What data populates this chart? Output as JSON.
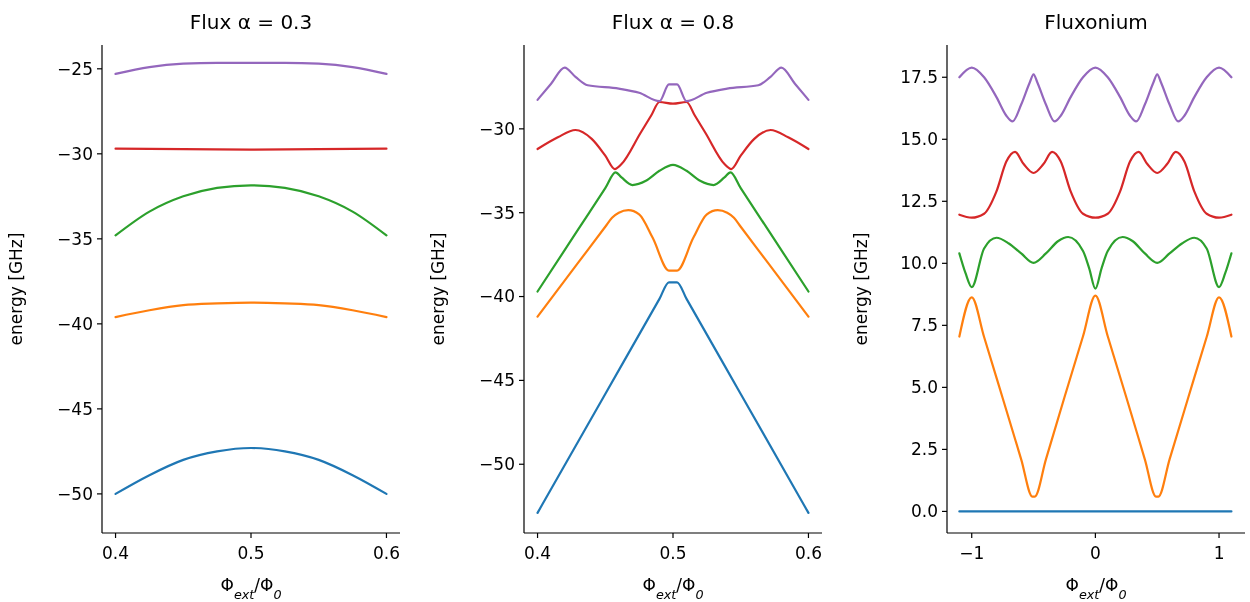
{
  "chart_data": [
    {
      "type": "line",
      "title": "Flux α = 0.3",
      "xlabel": "Φ$_{ext}$/Φ$_{0}$",
      "ylabel": "energy [GHz]",
      "xlim": [
        0.39,
        0.61
      ],
      "ylim": [
        -52.3,
        -23.6
      ],
      "xticks": [
        0.4,
        0.5,
        0.6
      ],
      "yticks": [
        {
          "value": -50,
          "label": "−50"
        },
        {
          "value": -45,
          "label": "−45"
        },
        {
          "value": -40,
          "label": "−40"
        },
        {
          "value": -35,
          "label": "−35"
        },
        {
          "value": -30,
          "label": "−30"
        },
        {
          "value": -25,
          "label": "−25"
        }
      ],
      "series": [
        {
          "color": "#1f77b4",
          "x": [
            0.4,
            0.425,
            0.45,
            0.475,
            0.5,
            0.525,
            0.55,
            0.575,
            0.6
          ],
          "values": [
            -50,
            -48.9,
            -48,
            -47.5,
            -47.3,
            -47.5,
            -48,
            -48.9,
            -50
          ]
        },
        {
          "color": "#ff7f0e",
          "x": [
            0.4,
            0.425,
            0.45,
            0.475,
            0.5,
            0.525,
            0.55,
            0.575,
            0.6
          ],
          "values": [
            -39.6,
            -39.2,
            -38.9,
            -38.8,
            -38.75,
            -38.8,
            -38.9,
            -39.2,
            -39.6
          ]
        },
        {
          "color": "#2ca02c",
          "x": [
            0.4,
            0.425,
            0.45,
            0.475,
            0.5,
            0.525,
            0.55,
            0.575,
            0.6
          ],
          "values": [
            -34.8,
            -33.4,
            -32.5,
            -32,
            -31.85,
            -32,
            -32.5,
            -33.4,
            -34.8
          ]
        },
        {
          "color": "#d62728",
          "x": [
            0.4,
            0.45,
            0.5,
            0.55,
            0.6
          ],
          "values": [
            -29.7,
            -29.72,
            -29.75,
            -29.72,
            -29.7
          ]
        },
        {
          "color": "#9467bd",
          "x": [
            0.4,
            0.425,
            0.45,
            0.475,
            0.5,
            0.525,
            0.55,
            0.575,
            0.6
          ],
          "values": [
            -25.3,
            -24.9,
            -24.7,
            -24.65,
            -24.65,
            -24.65,
            -24.7,
            -24.9,
            -25.3
          ]
        }
      ]
    },
    {
      "type": "line",
      "title": "Flux α = 0.8",
      "xlabel": "Φ$_{ext}$/Φ$_{0}$",
      "ylabel": "energy [GHz]",
      "xlim": [
        0.39,
        0.61
      ],
      "ylim": [
        -54.1,
        -25
      ],
      "xticks": [
        0.4,
        0.5,
        0.6
      ],
      "yticks": [
        {
          "value": -50,
          "label": "−50"
        },
        {
          "value": -45,
          "label": "−45"
        },
        {
          "value": -40,
          "label": "−40"
        },
        {
          "value": -35,
          "label": "−35"
        },
        {
          "value": -30,
          "label": "−30"
        }
      ],
      "series": [
        {
          "color": "#1f77b4",
          "x": [
            0.4,
            0.45,
            0.49,
            0.497,
            0.503,
            0.51,
            0.55,
            0.6
          ],
          "values": [
            -52.9,
            -45.81,
            -40.14,
            -39.15,
            -39.15,
            -40.14,
            -45.81,
            -52.9
          ]
        },
        {
          "color": "#ff7f0e",
          "x": [
            0.4,
            0.43,
            0.45,
            0.455,
            0.46,
            0.467,
            0.475,
            0.485,
            0.497,
            0.503,
            0.515,
            0.525,
            0.533,
            0.54,
            0.545,
            0.55,
            0.57,
            0.6
          ],
          "values": [
            -41.2,
            -37.98,
            -35.84,
            -35.3,
            -35,
            -34.85,
            -35.1,
            -36.5,
            -38.45,
            -38.45,
            -36.5,
            -35.1,
            -34.85,
            -35,
            -35.3,
            -35.84,
            -37.98,
            -41.2
          ]
        },
        {
          "color": "#2ca02c",
          "x": [
            0.4,
            0.43,
            0.45,
            0.4576,
            0.462,
            0.47,
            0.48,
            0.49,
            0.5,
            0.51,
            0.52,
            0.53,
            0.538,
            0.5424,
            0.55,
            0.57,
            0.6
          ],
          "values": [
            -39.7,
            -36,
            -33.54,
            -32.6,
            -32.9,
            -33.35,
            -33.1,
            -32.5,
            -32.15,
            -32.5,
            -33.1,
            -33.35,
            -32.9,
            -32.6,
            -33.54,
            -36,
            -39.7
          ]
        },
        {
          "color": "#d62728",
          "x": [
            0.4,
            0.415,
            0.428,
            0.44,
            0.45,
            0.457,
            0.462,
            0.476,
            0.484,
            0.49,
            0.5,
            0.51,
            0.516,
            0.524,
            0.538,
            0.543,
            0.55,
            0.56,
            0.572,
            0.585,
            0.6
          ],
          "values": [
            -31.2,
            -30.5,
            -30.07,
            -30.6,
            -31.6,
            -32.4,
            -32.1,
            -30.25,
            -29.19,
            -28.4,
            -28.5,
            -28.4,
            -29.19,
            -30.25,
            -32.1,
            -32.4,
            -31.6,
            -30.6,
            -30.07,
            -30.5,
            -31.2
          ]
        },
        {
          "color": "#9467bd",
          "x": [
            0.4,
            0.41,
            0.42,
            0.428,
            0.437,
            0.46,
            0.475,
            0.49,
            0.497,
            0.503,
            0.51,
            0.525,
            0.54,
            0.563,
            0.572,
            0.58,
            0.59,
            0.6
          ],
          "values": [
            -28.27,
            -27.31,
            -26.35,
            -26.9,
            -27.4,
            -27.6,
            -27.85,
            -28.35,
            -27.35,
            -27.35,
            -28.35,
            -27.85,
            -27.6,
            -27.4,
            -26.9,
            -26.35,
            -27.31,
            -28.27
          ]
        }
      ]
    },
    {
      "type": "line",
      "title": "Fluxonium",
      "xlabel": "Φ$_{ext}$/Φ$_{0}$",
      "ylabel": "energy [GHz]",
      "xlim": [
        -1.2,
        1.21
      ],
      "ylim": [
        -0.87,
        18.8
      ],
      "xticks": [
        {
          "value": -1,
          "label": "−1"
        },
        0,
        1
      ],
      "yticks": [
        {
          "value": 0,
          "label": "0.0"
        },
        {
          "value": 2.5,
          "label": "2.5"
        },
        {
          "value": 5,
          "label": "5.0"
        },
        {
          "value": 7.5,
          "label": "7.5"
        },
        {
          "value": 10,
          "label": "10.0"
        },
        {
          "value": 12.5,
          "label": "12.5"
        },
        {
          "value": 15,
          "label": "15.0"
        },
        {
          "value": 17.5,
          "label": "17.5"
        }
      ],
      "series": [
        {
          "color": "#1f77b4",
          "x": [
            -1.1,
            1.1
          ],
          "values": [
            0,
            0
          ]
        },
        {
          "color": "#ff7f0e",
          "x": [
            -1.1,
            -1,
            -0.9,
            -0.75,
            -0.6,
            -0.51,
            -0.49,
            -0.4,
            -0.25,
            -0.1,
            0,
            0.1,
            0.25,
            0.4,
            0.49,
            0.51,
            0.6,
            0.75,
            0.9,
            1,
            1.1
          ],
          "values": [
            7.05,
            8.63,
            7.03,
            4.57,
            2.1,
            0.6,
            0.6,
            2.1,
            4.6,
            7.06,
            8.7,
            7.06,
            4.6,
            2.1,
            0.6,
            0.6,
            2.1,
            4.57,
            7.03,
            8.63,
            7.05
          ]
        },
        {
          "color": "#2ca02c",
          "x": [
            -1.1,
            -1.05,
            -1,
            -0.9,
            -0.8,
            -0.7,
            -0.6,
            -0.5,
            -0.4,
            -0.3,
            -0.22,
            -0.1,
            -0.05,
            0,
            0.05,
            0.1,
            0.22,
            0.3,
            0.4,
            0.5,
            0.6,
            0.7,
            0.8,
            0.9,
            1,
            1.05,
            1.1
          ],
          "values": [
            10.4,
            9.6,
            9.04,
            10.6,
            11.03,
            10.8,
            10.4,
            10.02,
            10.4,
            10.9,
            11.06,
            10.5,
            9.8,
            8.98,
            9.8,
            10.5,
            11.06,
            10.9,
            10.4,
            10.02,
            10.4,
            10.8,
            11.03,
            10.6,
            9.04,
            9.6,
            10.4
          ]
        },
        {
          "color": "#d62728",
          "x": [
            -1.1,
            -1,
            -0.9,
            -0.8,
            -0.72,
            -0.65,
            -0.58,
            -0.5,
            -0.42,
            -0.35,
            -0.28,
            -0.2,
            -0.1,
            0,
            0.1,
            0.2,
            0.28,
            0.35,
            0.42,
            0.5,
            0.58,
            0.65,
            0.72,
            0.8,
            0.9,
            1,
            1.1
          ],
          "values": [
            11.96,
            11.84,
            12,
            12.9,
            14.1,
            14.49,
            14,
            13.64,
            14,
            14.49,
            14.1,
            12.9,
            12,
            11.84,
            12,
            12.9,
            14.1,
            14.49,
            14,
            13.64,
            14,
            14.49,
            14.1,
            12.9,
            12,
            11.84,
            11.96
          ]
        },
        {
          "color": "#9467bd",
          "x": [
            -1.1,
            -1,
            -0.9,
            -0.8,
            -0.72,
            -0.67,
            -0.6,
            -0.53,
            -0.5,
            -0.47,
            -0.4,
            -0.33,
            -0.28,
            -0.2,
            -0.1,
            0,
            0.1,
            0.2,
            0.28,
            0.33,
            0.4,
            0.47,
            0.5,
            0.53,
            0.6,
            0.67,
            0.72,
            0.8,
            0.9,
            1,
            1.1
          ],
          "values": [
            17.5,
            17.89,
            17.5,
            16.7,
            15.95,
            15.72,
            16.4,
            17.3,
            17.62,
            17.3,
            16.4,
            15.72,
            15.95,
            16.7,
            17.5,
            17.89,
            17.5,
            16.7,
            15.95,
            15.72,
            16.4,
            17.3,
            17.62,
            17.3,
            16.4,
            15.72,
            15.95,
            16.7,
            17.5,
            17.89,
            17.5
          ]
        }
      ]
    }
  ]
}
